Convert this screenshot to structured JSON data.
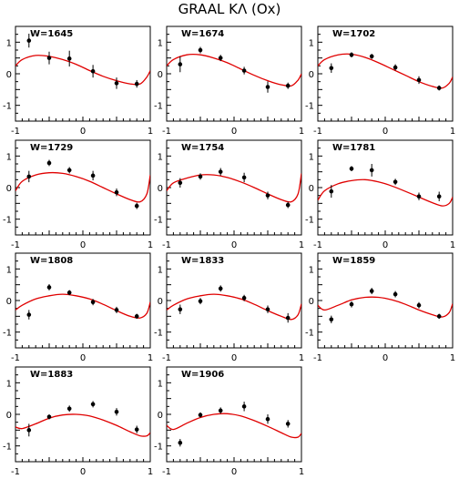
{
  "title": "GRAAL KΛ (Ox)",
  "style": {
    "curve_color": "#e00000",
    "point_color": "#000000",
    "frame_color": "#000000"
  },
  "chart_data": [
    {
      "type": "scatter",
      "label": "W=1645",
      "xlim": [
        -1,
        1
      ],
      "ylim": [
        -1.5,
        1.5
      ],
      "x_ticks": [
        "-1",
        "0",
        "1"
      ],
      "y_ticks": [
        "1",
        "0",
        "-1"
      ],
      "points": [
        {
          "x": -0.8,
          "y": 1.05,
          "err": 0.22
        },
        {
          "x": -0.5,
          "y": 0.5,
          "err": 0.2
        },
        {
          "x": -0.2,
          "y": 0.48,
          "err": 0.25
        },
        {
          "x": 0.15,
          "y": 0.08,
          "err": 0.2
        },
        {
          "x": 0.5,
          "y": -0.3,
          "err": 0.18
        },
        {
          "x": 0.8,
          "y": -0.32,
          "err": 0.12
        }
      ],
      "curve": [
        {
          "x": -1,
          "y": 0.25
        },
        {
          "x": -0.9,
          "y": 0.45
        },
        {
          "x": -0.7,
          "y": 0.58
        },
        {
          "x": -0.5,
          "y": 0.55
        },
        {
          "x": -0.3,
          "y": 0.45
        },
        {
          "x": -0.1,
          "y": 0.3
        },
        {
          "x": 0.1,
          "y": 0.1
        },
        {
          "x": 0.3,
          "y": -0.08
        },
        {
          "x": 0.5,
          "y": -0.22
        },
        {
          "x": 0.7,
          "y": -0.32
        },
        {
          "x": 0.85,
          "y": -0.32
        },
        {
          "x": 0.95,
          "y": -0.1
        },
        {
          "x": 1,
          "y": 0.1
        }
      ]
    },
    {
      "type": "scatter",
      "label": "W=1674",
      "xlim": [
        -1,
        1
      ],
      "ylim": [
        -1.5,
        1.5
      ],
      "x_ticks": [
        "-1",
        "0",
        "1"
      ],
      "y_ticks": [
        "1",
        "0",
        "-1"
      ],
      "points": [
        {
          "x": -0.8,
          "y": 0.3,
          "err": 0.25
        },
        {
          "x": -0.5,
          "y": 0.75,
          "err": 0.1
        },
        {
          "x": -0.2,
          "y": 0.5,
          "err": 0.1
        },
        {
          "x": 0.15,
          "y": 0.1,
          "err": 0.12
        },
        {
          "x": 0.5,
          "y": -0.42,
          "err": 0.18
        },
        {
          "x": 0.8,
          "y": -0.38,
          "err": 0.1
        }
      ],
      "curve": [
        {
          "x": -1,
          "y": 0.25
        },
        {
          "x": -0.9,
          "y": 0.45
        },
        {
          "x": -0.7,
          "y": 0.6
        },
        {
          "x": -0.5,
          "y": 0.6
        },
        {
          "x": -0.3,
          "y": 0.5
        },
        {
          "x": -0.1,
          "y": 0.35
        },
        {
          "x": 0.1,
          "y": 0.15
        },
        {
          "x": 0.3,
          "y": -0.05
        },
        {
          "x": 0.5,
          "y": -0.22
        },
        {
          "x": 0.7,
          "y": -0.35
        },
        {
          "x": 0.85,
          "y": -0.38
        },
        {
          "x": 0.95,
          "y": -0.2
        },
        {
          "x": 1,
          "y": 0.0
        }
      ]
    },
    {
      "type": "scatter",
      "label": "W=1702",
      "xlim": [
        -1,
        1
      ],
      "ylim": [
        -1.5,
        1.5
      ],
      "x_ticks": [
        "-1",
        "0",
        "1"
      ],
      "y_ticks": [
        "1",
        "0",
        "-1"
      ],
      "points": [
        {
          "x": -0.8,
          "y": 0.18,
          "err": 0.15
        },
        {
          "x": -0.5,
          "y": 0.6,
          "err": 0.08
        },
        {
          "x": -0.2,
          "y": 0.55,
          "err": 0.08
        },
        {
          "x": 0.15,
          "y": 0.2,
          "err": 0.1
        },
        {
          "x": 0.5,
          "y": -0.2,
          "err": 0.12
        },
        {
          "x": 0.8,
          "y": -0.45,
          "err": 0.08
        }
      ],
      "curve": [
        {
          "x": -1,
          "y": 0.25
        },
        {
          "x": -0.9,
          "y": 0.45
        },
        {
          "x": -0.7,
          "y": 0.6
        },
        {
          "x": -0.5,
          "y": 0.62
        },
        {
          "x": -0.3,
          "y": 0.52
        },
        {
          "x": -0.1,
          "y": 0.35
        },
        {
          "x": 0.1,
          "y": 0.15
        },
        {
          "x": 0.3,
          "y": -0.05
        },
        {
          "x": 0.5,
          "y": -0.25
        },
        {
          "x": 0.7,
          "y": -0.4
        },
        {
          "x": 0.85,
          "y": -0.45
        },
        {
          "x": 0.95,
          "y": -0.3
        },
        {
          "x": 1,
          "y": -0.1
        }
      ]
    },
    {
      "type": "scatter",
      "label": "W=1729",
      "xlim": [
        -1,
        1
      ],
      "ylim": [
        -1.5,
        1.5
      ],
      "x_ticks": [
        "-1",
        "0",
        "1"
      ],
      "y_ticks": [
        "1",
        "0",
        "-1"
      ],
      "points": [
        {
          "x": -0.8,
          "y": 0.35,
          "err": 0.18
        },
        {
          "x": -0.5,
          "y": 0.78,
          "err": 0.1
        },
        {
          "x": -0.2,
          "y": 0.55,
          "err": 0.1
        },
        {
          "x": 0.15,
          "y": 0.38,
          "err": 0.15
        },
        {
          "x": 0.5,
          "y": -0.15,
          "err": 0.12
        },
        {
          "x": 0.8,
          "y": -0.58,
          "err": 0.1
        }
      ],
      "curve": [
        {
          "x": -1,
          "y": -0.1
        },
        {
          "x": -0.9,
          "y": 0.2
        },
        {
          "x": -0.7,
          "y": 0.4
        },
        {
          "x": -0.5,
          "y": 0.47
        },
        {
          "x": -0.3,
          "y": 0.45
        },
        {
          "x": -0.1,
          "y": 0.35
        },
        {
          "x": 0.1,
          "y": 0.2
        },
        {
          "x": 0.3,
          "y": 0.0
        },
        {
          "x": 0.5,
          "y": -0.2
        },
        {
          "x": 0.7,
          "y": -0.38
        },
        {
          "x": 0.85,
          "y": -0.45
        },
        {
          "x": 0.95,
          "y": -0.2
        },
        {
          "x": 1,
          "y": 0.4
        }
      ]
    },
    {
      "type": "scatter",
      "label": "W=1754",
      "xlim": [
        -1,
        1
      ],
      "ylim": [
        -1.5,
        1.5
      ],
      "x_ticks": [
        "-1",
        "0",
        "1"
      ],
      "y_ticks": [
        "1",
        "0",
        "-1"
      ],
      "points": [
        {
          "x": -0.8,
          "y": 0.15,
          "err": 0.15
        },
        {
          "x": -0.5,
          "y": 0.35,
          "err": 0.1
        },
        {
          "x": -0.2,
          "y": 0.5,
          "err": 0.12
        },
        {
          "x": 0.15,
          "y": 0.32,
          "err": 0.15
        },
        {
          "x": 0.5,
          "y": -0.25,
          "err": 0.12
        },
        {
          "x": 0.8,
          "y": -0.55,
          "err": 0.1
        }
      ],
      "curve": [
        {
          "x": -1,
          "y": -0.1
        },
        {
          "x": -0.9,
          "y": 0.15
        },
        {
          "x": -0.7,
          "y": 0.3
        },
        {
          "x": -0.5,
          "y": 0.4
        },
        {
          "x": -0.3,
          "y": 0.4
        },
        {
          "x": -0.1,
          "y": 0.32
        },
        {
          "x": 0.1,
          "y": 0.18
        },
        {
          "x": 0.3,
          "y": 0.0
        },
        {
          "x": 0.5,
          "y": -0.2
        },
        {
          "x": 0.7,
          "y": -0.38
        },
        {
          "x": 0.85,
          "y": -0.45
        },
        {
          "x": 0.95,
          "y": -0.2
        },
        {
          "x": 1,
          "y": 0.45
        }
      ]
    },
    {
      "type": "scatter",
      "label": "W=1781",
      "xlim": [
        -1,
        1
      ],
      "ylim": [
        -1.5,
        1.5
      ],
      "x_ticks": [
        "-1",
        "0",
        "1"
      ],
      "y_ticks": [
        "1",
        "0",
        "-1"
      ],
      "points": [
        {
          "x": -0.8,
          "y": -0.12,
          "err": 0.2
        },
        {
          "x": -0.5,
          "y": 0.6,
          "err": 0.08
        },
        {
          "x": -0.2,
          "y": 0.55,
          "err": 0.2
        },
        {
          "x": 0.15,
          "y": 0.18,
          "err": 0.1
        },
        {
          "x": 0.5,
          "y": -0.28,
          "err": 0.12
        },
        {
          "x": 0.8,
          "y": -0.28,
          "err": 0.15
        }
      ],
      "curve": [
        {
          "x": -1,
          "y": -0.4
        },
        {
          "x": -0.9,
          "y": -0.1
        },
        {
          "x": -0.7,
          "y": 0.12
        },
        {
          "x": -0.5,
          "y": 0.22
        },
        {
          "x": -0.3,
          "y": 0.25
        },
        {
          "x": -0.1,
          "y": 0.18
        },
        {
          "x": 0.1,
          "y": 0.05
        },
        {
          "x": 0.3,
          "y": -0.12
        },
        {
          "x": 0.5,
          "y": -0.3
        },
        {
          "x": 0.7,
          "y": -0.48
        },
        {
          "x": 0.85,
          "y": -0.58
        },
        {
          "x": 0.95,
          "y": -0.5
        },
        {
          "x": 1,
          "y": -0.3
        }
      ]
    },
    {
      "type": "scatter",
      "label": "W=1808",
      "xlim": [
        -1,
        1
      ],
      "ylim": [
        -1.5,
        1.5
      ],
      "x_ticks": [
        "-1",
        "0",
        "1"
      ],
      "y_ticks": [
        "1",
        "0",
        "-1"
      ],
      "points": [
        {
          "x": -0.8,
          "y": -0.45,
          "err": 0.15
        },
        {
          "x": -0.5,
          "y": 0.42,
          "err": 0.1
        },
        {
          "x": -0.2,
          "y": 0.25,
          "err": 0.08
        },
        {
          "x": 0.15,
          "y": -0.05,
          "err": 0.1
        },
        {
          "x": 0.5,
          "y": -0.3,
          "err": 0.1
        },
        {
          "x": 0.8,
          "y": -0.5,
          "err": 0.08
        }
      ],
      "curve": [
        {
          "x": -1,
          "y": -0.3
        },
        {
          "x": -0.9,
          "y": -0.15
        },
        {
          "x": -0.7,
          "y": 0.05
        },
        {
          "x": -0.5,
          "y": 0.15
        },
        {
          "x": -0.3,
          "y": 0.2
        },
        {
          "x": -0.1,
          "y": 0.15
        },
        {
          "x": 0.1,
          "y": 0.05
        },
        {
          "x": 0.3,
          "y": -0.12
        },
        {
          "x": 0.5,
          "y": -0.32
        },
        {
          "x": 0.7,
          "y": -0.5
        },
        {
          "x": 0.85,
          "y": -0.55
        },
        {
          "x": 0.95,
          "y": -0.4
        },
        {
          "x": 1,
          "y": -0.05
        }
      ]
    },
    {
      "type": "scatter",
      "label": "W=1833",
      "xlim": [
        -1,
        1
      ],
      "ylim": [
        -1.5,
        1.5
      ],
      "x_ticks": [
        "-1",
        "0",
        "1"
      ],
      "y_ticks": [
        "1",
        "0",
        "-1"
      ],
      "points": [
        {
          "x": -0.8,
          "y": -0.28,
          "err": 0.15
        },
        {
          "x": -0.5,
          "y": -0.02,
          "err": 0.1
        },
        {
          "x": -0.2,
          "y": 0.38,
          "err": 0.1
        },
        {
          "x": 0.15,
          "y": 0.08,
          "err": 0.1
        },
        {
          "x": 0.5,
          "y": -0.28,
          "err": 0.12
        },
        {
          "x": 0.8,
          "y": -0.55,
          "err": 0.15
        }
      ],
      "curve": [
        {
          "x": -1,
          "y": -0.3
        },
        {
          "x": -0.9,
          "y": -0.15
        },
        {
          "x": -0.7,
          "y": 0.05
        },
        {
          "x": -0.5,
          "y": 0.15
        },
        {
          "x": -0.3,
          "y": 0.2
        },
        {
          "x": -0.1,
          "y": 0.15
        },
        {
          "x": 0.1,
          "y": 0.05
        },
        {
          "x": 0.3,
          "y": -0.12
        },
        {
          "x": 0.5,
          "y": -0.32
        },
        {
          "x": 0.7,
          "y": -0.5
        },
        {
          "x": 0.85,
          "y": -0.6
        },
        {
          "x": 0.95,
          "y": -0.45
        },
        {
          "x": 1,
          "y": -0.1
        }
      ]
    },
    {
      "type": "scatter",
      "label": "W=1859",
      "xlim": [
        -1,
        1
      ],
      "ylim": [
        -1.5,
        1.5
      ],
      "x_ticks": [
        "-1",
        "0",
        "1"
      ],
      "y_ticks": [
        "1",
        "0",
        "-1"
      ],
      "points": [
        {
          "x": -0.8,
          "y": -0.6,
          "err": 0.12
        },
        {
          "x": -0.5,
          "y": -0.12,
          "err": 0.1
        },
        {
          "x": -0.2,
          "y": 0.3,
          "err": 0.1
        },
        {
          "x": 0.15,
          "y": 0.2,
          "err": 0.1
        },
        {
          "x": 0.5,
          "y": -0.15,
          "err": 0.1
        },
        {
          "x": 0.8,
          "y": -0.5,
          "err": 0.08
        }
      ],
      "curve": [
        {
          "x": -1,
          "y": -0.15
        },
        {
          "x": -0.9,
          "y": -0.3
        },
        {
          "x": -0.7,
          "y": -0.15
        },
        {
          "x": -0.5,
          "y": 0.02
        },
        {
          "x": -0.3,
          "y": 0.1
        },
        {
          "x": -0.1,
          "y": 0.1
        },
        {
          "x": 0.1,
          "y": 0.02
        },
        {
          "x": 0.3,
          "y": -0.12
        },
        {
          "x": 0.5,
          "y": -0.3
        },
        {
          "x": 0.7,
          "y": -0.45
        },
        {
          "x": 0.85,
          "y": -0.52
        },
        {
          "x": 0.95,
          "y": -0.38
        },
        {
          "x": 1,
          "y": -0.1
        }
      ]
    },
    {
      "type": "scatter",
      "label": "W=1883",
      "xlim": [
        -1,
        1
      ],
      "ylim": [
        -1.5,
        1.5
      ],
      "x_ticks": [
        "-1",
        "0",
        "1"
      ],
      "y_ticks": [
        "1",
        "0",
        "-1"
      ],
      "points": [
        {
          "x": -0.8,
          "y": -0.5,
          "err": 0.2
        },
        {
          "x": -0.5,
          "y": -0.08,
          "err": 0.08
        },
        {
          "x": -0.2,
          "y": 0.18,
          "err": 0.1
        },
        {
          "x": 0.15,
          "y": 0.32,
          "err": 0.1
        },
        {
          "x": 0.5,
          "y": 0.08,
          "err": 0.12
        },
        {
          "x": 0.8,
          "y": -0.48,
          "err": 0.12
        }
      ],
      "curve": [
        {
          "x": -1,
          "y": -0.4
        },
        {
          "x": -0.9,
          "y": -0.45
        },
        {
          "x": -0.7,
          "y": -0.3
        },
        {
          "x": -0.5,
          "y": -0.12
        },
        {
          "x": -0.3,
          "y": -0.02
        },
        {
          "x": -0.1,
          "y": 0.0
        },
        {
          "x": 0.1,
          "y": -0.05
        },
        {
          "x": 0.3,
          "y": -0.18
        },
        {
          "x": 0.5,
          "y": -0.35
        },
        {
          "x": 0.7,
          "y": -0.55
        },
        {
          "x": 0.85,
          "y": -0.68
        },
        {
          "x": 0.95,
          "y": -0.68
        },
        {
          "x": 1,
          "y": -0.58
        }
      ]
    },
    {
      "type": "scatter",
      "label": "W=1906",
      "xlim": [
        -1,
        1
      ],
      "ylim": [
        -1.5,
        1.5
      ],
      "x_ticks": [
        "-1",
        "0",
        "1"
      ],
      "y_ticks": [
        "1",
        "0",
        "-1"
      ],
      "points": [
        {
          "x": -0.8,
          "y": -0.9,
          "err": 0.12
        },
        {
          "x": -0.5,
          "y": -0.02,
          "err": 0.08
        },
        {
          "x": -0.2,
          "y": 0.12,
          "err": 0.1
        },
        {
          "x": 0.15,
          "y": 0.25,
          "err": 0.15
        },
        {
          "x": 0.5,
          "y": -0.15,
          "err": 0.15
        },
        {
          "x": 0.8,
          "y": -0.3,
          "err": 0.12
        }
      ],
      "curve": [
        {
          "x": -1,
          "y": -0.35
        },
        {
          "x": -0.9,
          "y": -0.48
        },
        {
          "x": -0.7,
          "y": -0.28
        },
        {
          "x": -0.5,
          "y": -0.1
        },
        {
          "x": -0.3,
          "y": 0.0
        },
        {
          "x": -0.1,
          "y": 0.02
        },
        {
          "x": 0.1,
          "y": -0.05
        },
        {
          "x": 0.3,
          "y": -0.2
        },
        {
          "x": 0.5,
          "y": -0.38
        },
        {
          "x": 0.7,
          "y": -0.58
        },
        {
          "x": 0.85,
          "y": -0.72
        },
        {
          "x": 0.95,
          "y": -0.72
        },
        {
          "x": 1,
          "y": -0.6
        }
      ]
    }
  ]
}
